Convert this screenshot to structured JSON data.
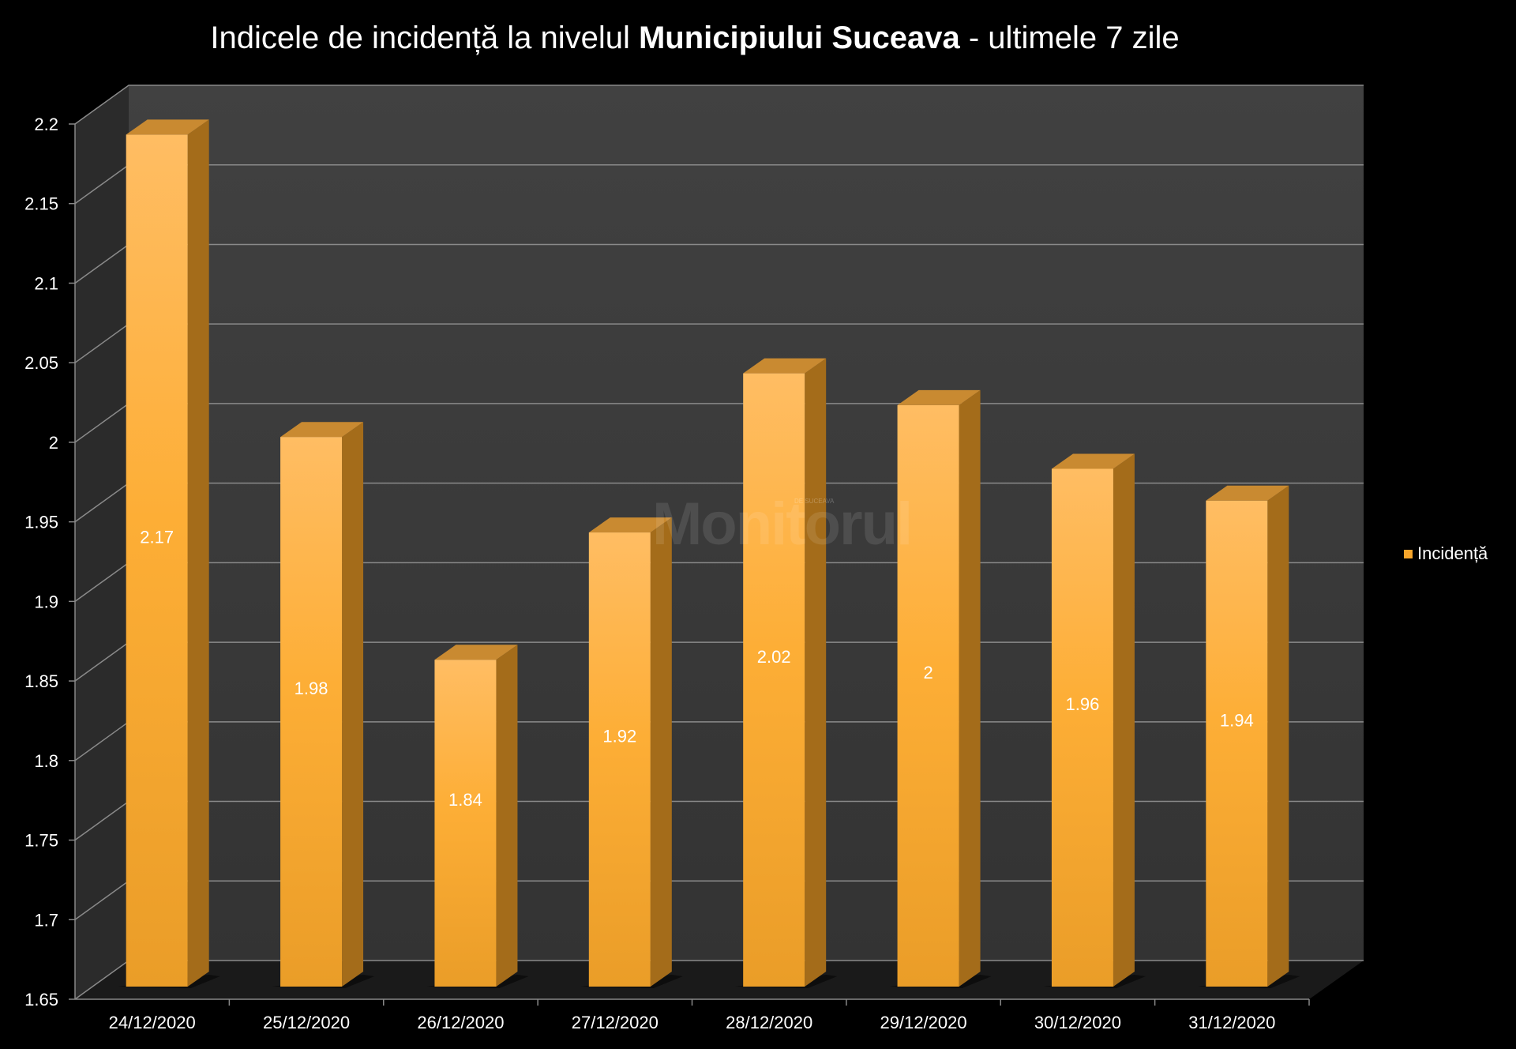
{
  "title": {
    "part1": "Indicele de incidență la nivelul ",
    "bold": "Municipiului Suceava",
    "part2": " - ultimele 7 zile"
  },
  "watermark": {
    "text": "Monitorul",
    "small_text": "DE SUCEAVA"
  },
  "colors": {
    "bar_front": "#f6a52b",
    "bar_light": "#ffbd63",
    "bar_side": "#a46c1a",
    "bar_top": "#c98a31",
    "wall": "#3b3b3b",
    "side_wall": "#2b2b2b",
    "gridline": "#8a8a8a",
    "background": "#000000"
  },
  "chart_data": {
    "type": "bar",
    "categories": [
      "24/12/2020",
      "25/12/2020",
      "26/12/2020",
      "27/12/2020",
      "28/12/2020",
      "29/12/2020",
      "30/12/2020",
      "31/12/2020"
    ],
    "series": [
      {
        "name": "Incidență",
        "values": [
          2.17,
          1.98,
          1.84,
          1.92,
          2.02,
          2,
          1.96,
          1.94
        ]
      }
    ],
    "data_labels": [
      "2.17",
      "1.98",
      "1.84",
      "1.92",
      "2.02",
      "2",
      "1.96",
      "1.94"
    ],
    "yticks": [
      "1.65",
      "1.7",
      "1.75",
      "1.8",
      "1.85",
      "1.9",
      "1.95",
      "2",
      "2.05",
      "2.1",
      "2.15",
      "2.2"
    ],
    "ylim": [
      1.65,
      2.2
    ],
    "ystep": 0.05,
    "grid": true,
    "legend_position": "right",
    "style": "3d-column"
  }
}
